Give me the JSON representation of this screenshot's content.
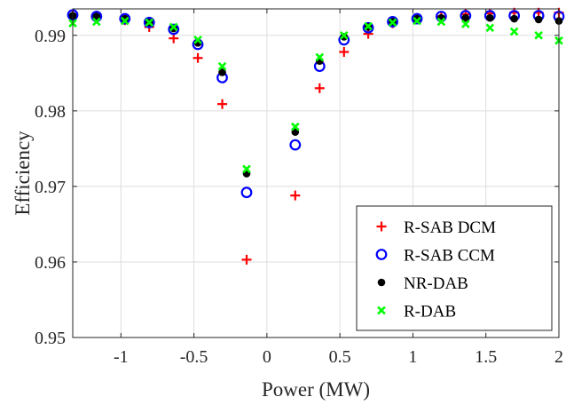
{
  "chart_data": {
    "type": "scatter",
    "xlabel": "Power (MW)",
    "ylabel": "Efficiency",
    "xlim": [
      -1.33,
      2.0
    ],
    "ylim": [
      0.95,
      0.9935
    ],
    "xticks": [
      -1,
      -0.5,
      0,
      0.5,
      1,
      1.5,
      2
    ],
    "xtick_labels": [
      "-1",
      "-0.5",
      "0",
      "0.5",
      "1",
      "1.5",
      "2"
    ],
    "yticks": [
      0.95,
      0.96,
      0.97,
      0.98,
      0.99
    ],
    "ytick_labels": [
      "0.95",
      "0.96",
      "0.97",
      "0.98",
      "0.99"
    ],
    "grid": true,
    "legend_position": "bottom-right",
    "series": [
      {
        "name": "R-SAB DCM",
        "marker": "plus",
        "color": "#ff0000",
        "x": [
          -1.33,
          -1.167,
          -0.973,
          -0.806,
          -0.639,
          -0.473,
          -0.306,
          -0.139,
          0.194,
          0.361,
          0.528,
          0.694,
          0.861,
          1.028,
          1.194,
          1.361,
          1.528,
          1.694,
          1.861,
          2.0
        ],
        "y": [
          0.9926,
          0.9926,
          0.992,
          0.9911,
          0.9896,
          0.987,
          0.9809,
          0.9603,
          0.9688,
          0.983,
          0.9878,
          0.9902,
          0.9916,
          0.9922,
          0.9925,
          0.9928,
          0.9929,
          0.993,
          0.993,
          0.993
        ]
      },
      {
        "name": "R-SAB CCM",
        "marker": "circle",
        "color": "#0000ff",
        "x": [
          -1.33,
          -1.167,
          -0.973,
          -0.806,
          -0.639,
          -0.473,
          -0.306,
          -0.139,
          0.194,
          0.361,
          0.528,
          0.694,
          0.861,
          1.028,
          1.194,
          1.361,
          1.528,
          1.694,
          1.861,
          2.0
        ],
        "y": [
          0.9927,
          0.9925,
          0.9922,
          0.9917,
          0.9908,
          0.9888,
          0.9844,
          0.9692,
          0.9755,
          0.9859,
          0.9894,
          0.991,
          0.9918,
          0.9922,
          0.9925,
          0.9926,
          0.9926,
          0.9926,
          0.9926,
          0.9925
        ]
      },
      {
        "name": "NR-DAB",
        "marker": "dot",
        "color": "#000000",
        "x": [
          -1.33,
          -1.167,
          -0.973,
          -0.806,
          -0.639,
          -0.473,
          -0.306,
          -0.139,
          0.194,
          0.361,
          0.528,
          0.694,
          0.861,
          1.028,
          1.194,
          1.361,
          1.528,
          1.694,
          1.861,
          2.0
        ],
        "y": [
          0.9926,
          0.9925,
          0.9922,
          0.9917,
          0.9909,
          0.989,
          0.9851,
          0.9717,
          0.9772,
          0.9866,
          0.9898,
          0.9911,
          0.9918,
          0.9922,
          0.9923,
          0.9923,
          0.9923,
          0.9922,
          0.9921,
          0.9919
        ]
      },
      {
        "name": "R-DAB",
        "marker": "x",
        "color": "#00ff00",
        "x": [
          -1.33,
          -1.167,
          -0.973,
          -0.806,
          -0.639,
          -0.473,
          -0.306,
          -0.139,
          0.194,
          0.361,
          0.528,
          0.694,
          0.861,
          1.028,
          1.194,
          1.361,
          1.528,
          1.694,
          1.861,
          2.0
        ],
        "y": [
          0.9916,
          0.9918,
          0.9919,
          0.9917,
          0.9911,
          0.9894,
          0.9859,
          0.9723,
          0.9779,
          0.9871,
          0.99,
          0.9912,
          0.9917,
          0.9919,
          0.9918,
          0.9915,
          0.991,
          0.9905,
          0.99,
          0.9893
        ]
      }
    ]
  }
}
